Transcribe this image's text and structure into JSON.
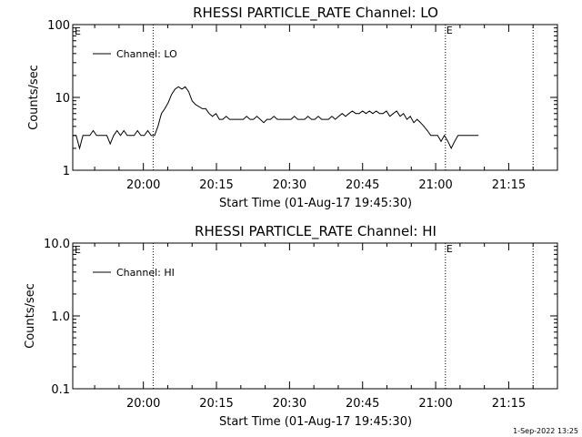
{
  "footer_stamp": "1-Sep-2022 13:25",
  "chart_data": [
    {
      "type": "line",
      "title": "RHESSI PARTICLE_RATE Channel: LO",
      "xlabel": "Start Time (01-Aug-17 19:45:30)",
      "ylabel": "Counts/sec",
      "y_scale": "log",
      "ylim": [
        1,
        100
      ],
      "y_ticks": [
        "1",
        "10",
        "100"
      ],
      "x_ticks": [
        "20:00",
        "20:15",
        "20:30",
        "20:45",
        "21:00",
        "21:15"
      ],
      "x_range_minutes": [
        0,
        99.5
      ],
      "vlines": [
        {
          "t": 16.5,
          "label": ""
        },
        {
          "t": 76.5,
          "label": "E"
        },
        {
          "t": 94.5,
          "label": ""
        }
      ],
      "corner_marker": "E",
      "legend": {
        "label": "Channel: LO",
        "placement": "top-left"
      },
      "series": [
        {
          "name": "Channel: LO",
          "points": [
            [
              0,
              3
            ],
            [
              1,
              3
            ],
            [
              2,
              2
            ],
            [
              3,
              3
            ],
            [
              4,
              3
            ],
            [
              5,
              3
            ],
            [
              6,
              3.5
            ],
            [
              7,
              3
            ],
            [
              8,
              3
            ],
            [
              9,
              3
            ],
            [
              10,
              3
            ],
            [
              11,
              2.3
            ],
            [
              12,
              3
            ],
            [
              13,
              3.5
            ],
            [
              14,
              3
            ],
            [
              15,
              3.5
            ],
            [
              16,
              3
            ],
            [
              17,
              3
            ],
            [
              18,
              3
            ],
            [
              19,
              3.5
            ],
            [
              20,
              3
            ],
            [
              21,
              3
            ],
            [
              22,
              3.5
            ],
            [
              23,
              3
            ],
            [
              24,
              3
            ],
            [
              25,
              4
            ],
            [
              26,
              6
            ],
            [
              27,
              7
            ],
            [
              28,
              8.5
            ],
            [
              29,
              11
            ],
            [
              30,
              13
            ],
            [
              31,
              14
            ],
            [
              32,
              13
            ],
            [
              33,
              14
            ],
            [
              34,
              12
            ],
            [
              35,
              9
            ],
            [
              36,
              8
            ],
            [
              37,
              7.5
            ],
            [
              38,
              7
            ],
            [
              39,
              7
            ],
            [
              40,
              6
            ],
            [
              41,
              5.5
            ],
            [
              42,
              6
            ],
            [
              43,
              5
            ],
            [
              44,
              5
            ],
            [
              45,
              5.5
            ],
            [
              46,
              5
            ],
            [
              47,
              5
            ],
            [
              48,
              5
            ],
            [
              49,
              5
            ],
            [
              50,
              5
            ],
            [
              51,
              5.5
            ],
            [
              52,
              5
            ],
            [
              53,
              5
            ],
            [
              54,
              5.5
            ],
            [
              55,
              5
            ],
            [
              56,
              4.5
            ],
            [
              57,
              5
            ],
            [
              58,
              5
            ],
            [
              59,
              5.5
            ],
            [
              60,
              5
            ],
            [
              61,
              5
            ],
            [
              62,
              5
            ],
            [
              63,
              5
            ],
            [
              64,
              5
            ],
            [
              65,
              5.5
            ],
            [
              66,
              5
            ],
            [
              67,
              5
            ],
            [
              68,
              5
            ],
            [
              69,
              5.5
            ],
            [
              70,
              5
            ],
            [
              71,
              5
            ],
            [
              72,
              5.5
            ],
            [
              73,
              5
            ],
            [
              74,
              5
            ],
            [
              75,
              5
            ],
            [
              76,
              5.5
            ],
            [
              77,
              5
            ],
            [
              78,
              5.5
            ],
            [
              79,
              6
            ],
            [
              80,
              5.5
            ],
            [
              81,
              6
            ],
            [
              82,
              6.5
            ],
            [
              83,
              6
            ],
            [
              84,
              6
            ],
            [
              85,
              6.5
            ],
            [
              86,
              6
            ],
            [
              87,
              6.5
            ],
            [
              88,
              6
            ],
            [
              89,
              6.5
            ],
            [
              90,
              6
            ],
            [
              91,
              6
            ],
            [
              92,
              6.5
            ],
            [
              93,
              5.5
            ],
            [
              94,
              6
            ],
            [
              95,
              6.5
            ],
            [
              96,
              5.5
            ],
            [
              97,
              6
            ],
            [
              98,
              5
            ],
            [
              99,
              5.5
            ],
            [
              100,
              4.5
            ],
            [
              101,
              5
            ],
            [
              102,
              4.5
            ],
            [
              103,
              4
            ],
            [
              104,
              3.5
            ],
            [
              105,
              3
            ],
            [
              106,
              3
            ],
            [
              107,
              3
            ],
            [
              108,
              2.5
            ],
            [
              109,
              3
            ],
            [
              110,
              2.5
            ],
            [
              111,
              2
            ],
            [
              112,
              2.5
            ],
            [
              113,
              3
            ],
            [
              114,
              3
            ],
            [
              115,
              3
            ],
            [
              116,
              3
            ],
            [
              117,
              3
            ],
            [
              118,
              3
            ],
            [
              119,
              3
            ]
          ]
        }
      ]
    },
    {
      "type": "line",
      "title": "RHESSI PARTICLE_RATE Channel: HI",
      "xlabel": "Start Time (01-Aug-17 19:45:30)",
      "ylabel": "Counts/sec",
      "y_scale": "log",
      "ylim": [
        0.1,
        10
      ],
      "y_ticks": [
        "0.1",
        "1.0",
        "10.0"
      ],
      "x_ticks": [
        "20:00",
        "20:15",
        "20:30",
        "20:45",
        "21:00",
        "21:15"
      ],
      "x_range_minutes": [
        0,
        99.5
      ],
      "vlines": [
        {
          "t": 16.5,
          "label": ""
        },
        {
          "t": 76.5,
          "label": "E"
        },
        {
          "t": 94.5,
          "label": ""
        }
      ],
      "corner_marker": "E",
      "legend": {
        "label": "Channel: HI",
        "placement": "top-left"
      },
      "series": []
    }
  ]
}
